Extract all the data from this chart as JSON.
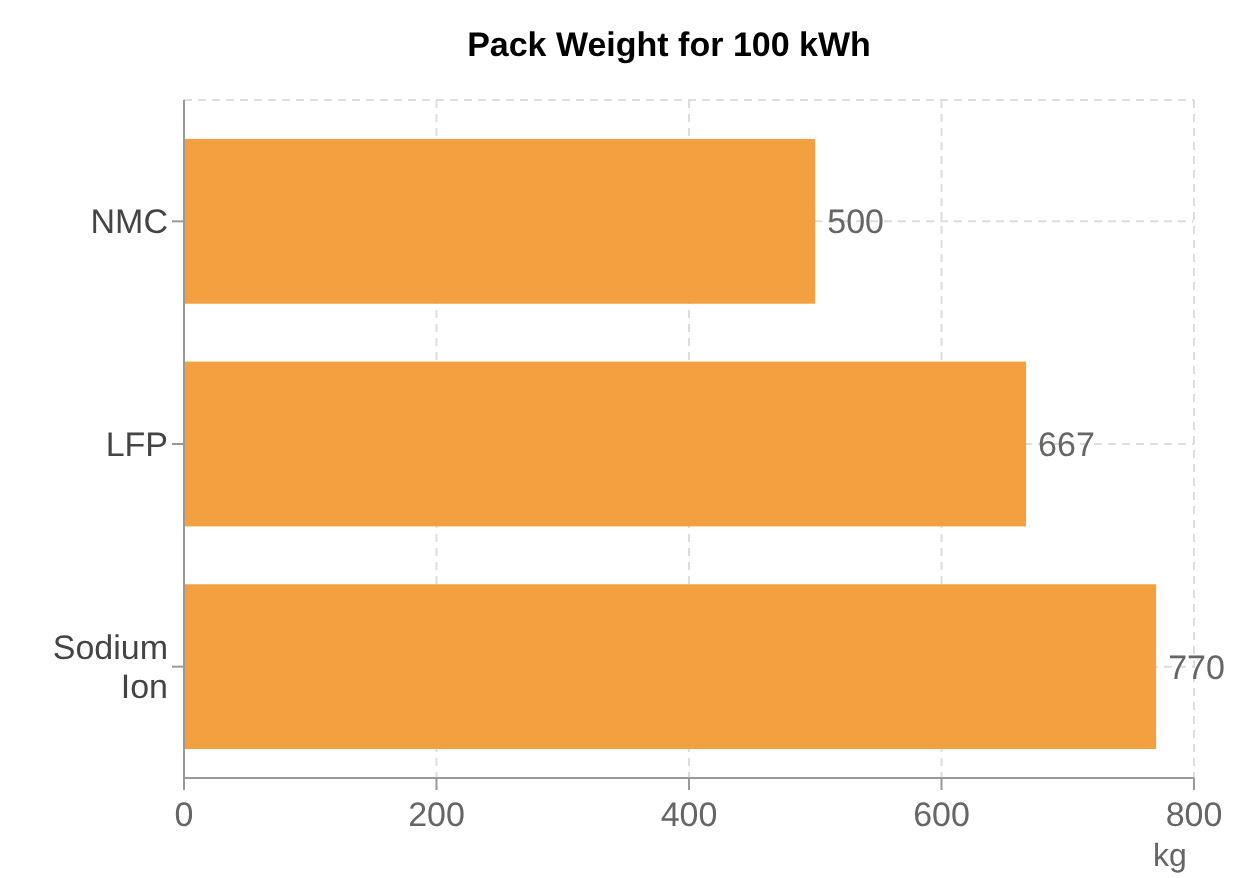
{
  "chart_data": {
    "type": "bar",
    "orientation": "horizontal",
    "title": "Pack Weight for 100 kWh",
    "xlabel": "kg",
    "categories": [
      "NMC",
      "LFP",
      "Sodium Ion"
    ],
    "values": [
      500,
      667,
      770
    ],
    "color": "#f2a040",
    "xlim": [
      0,
      800
    ],
    "xticks": [
      0,
      200,
      400,
      600,
      800
    ],
    "grid": true,
    "data_labels": true
  }
}
